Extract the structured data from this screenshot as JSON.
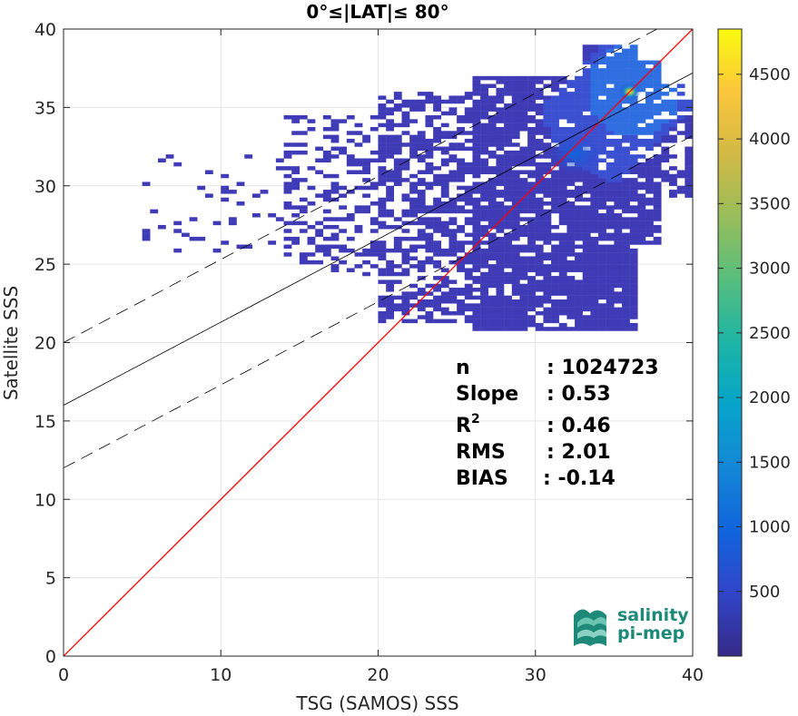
{
  "chart_data": {
    "type": "heatmap",
    "title": "0°≤|LAT|≤ 80°",
    "xlabel": "TSG (SAMOS) SSS",
    "ylabel": "Satellite SSS",
    "xlim": [
      0,
      40
    ],
    "ylim": [
      0,
      40
    ],
    "xticks": [
      "0",
      "10",
      "20",
      "30",
      "40"
    ],
    "yticks": [
      "0",
      "5",
      "10",
      "15",
      "20",
      "25",
      "30",
      "35",
      "40"
    ],
    "grid": true,
    "colorbar": {
      "range": [
        0,
        4850
      ],
      "ticks": [
        "500",
        "1000",
        "1500",
        "2000",
        "2500",
        "3000",
        "3500",
        "4000",
        "4500"
      ],
      "colormap": "parula"
    },
    "density_peak": {
      "x": 36,
      "y": 36
    },
    "secondary_peak": {
      "x": 32.5,
      "y": 32
    },
    "lines": [
      {
        "kind": "one-to-one",
        "color": "#ff0000",
        "slope": 1,
        "intercept": 0
      },
      {
        "kind": "regression",
        "color": "#000000",
        "style": "solid",
        "slope": 0.53,
        "intercept": 16
      },
      {
        "kind": "upper-bound",
        "color": "#000000",
        "style": "dashed",
        "slope": 0.53,
        "intercept": 20
      },
      {
        "kind": "lower-bound",
        "color": "#000000",
        "style": "dashed",
        "slope": 0.53,
        "intercept": 12
      }
    ],
    "stats": [
      {
        "label": "n",
        "value": ": 1024723"
      },
      {
        "label": "Slope",
        "value": ": 0.53"
      },
      {
        "label": "R",
        "superscript": "2",
        "value": ": 0.46"
      },
      {
        "label": "RMS",
        "value": ": 2.01"
      },
      {
        "label": "BIAS",
        "value": ": -0.14"
      }
    ]
  },
  "logo": {
    "line1": "salinity",
    "line2": "pi-mep",
    "color": "#1d8a79"
  }
}
